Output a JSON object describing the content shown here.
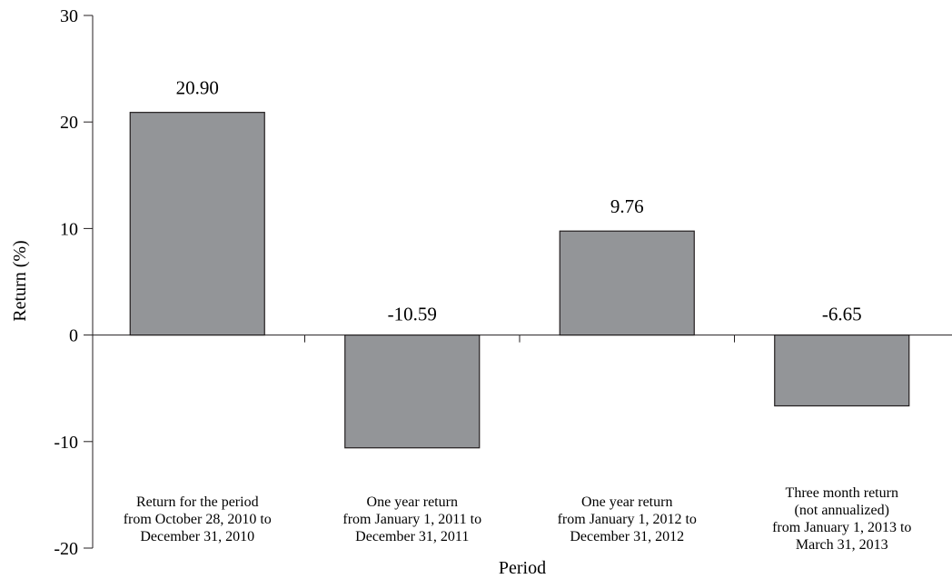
{
  "chart_data": {
    "type": "bar",
    "title": "",
    "xlabel": "Period",
    "ylabel": "Return (%)",
    "ylim": [
      -20,
      30
    ],
    "yticks": [
      -20,
      -10,
      0,
      10,
      20,
      30
    ],
    "ytick_labels": [
      "-20",
      "-10",
      "0",
      "10",
      "20",
      "30"
    ],
    "grid": false,
    "legend": "none",
    "bar_color": "#939598",
    "categories": [
      [
        "Return for the period",
        "from October 28, 2010 to",
        "December 31, 2010"
      ],
      [
        "One year return",
        "from January 1, 2011 to",
        "December 31, 2011"
      ],
      [
        "One year return",
        "from January 1, 2012 to",
        "December 31, 2012"
      ],
      [
        "Three month return",
        "(not annualized)",
        "from January 1, 2013 to",
        "March 31, 2013"
      ]
    ],
    "values": [
      20.9,
      -10.59,
      9.76,
      -6.65
    ],
    "data_labels": [
      "20.90",
      "-10.59",
      "9.76",
      "-6.65"
    ]
  }
}
